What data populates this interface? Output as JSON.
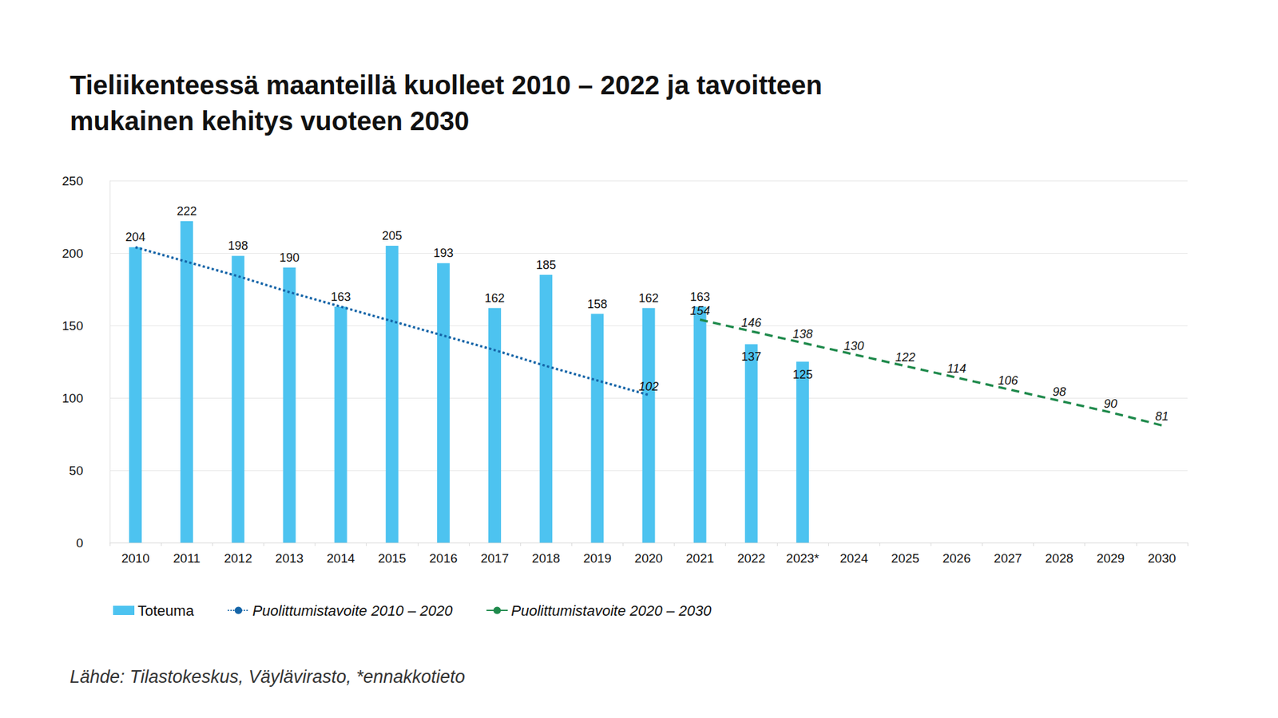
{
  "chart_data": {
    "type": "bar",
    "title": "Tieliikenteessä maanteillä kuolleet 2010 – 2022 ja tavoitteen\nmukainen kehitys vuoteen 2030",
    "categories": [
      "2010",
      "2011",
      "2012",
      "2013",
      "2014",
      "2015",
      "2016",
      "2017",
      "2018",
      "2019",
      "2020",
      "2021",
      "2022",
      "2023*",
      "2024",
      "2025",
      "2026",
      "2027",
      "2028",
      "2029",
      "2030"
    ],
    "series": [
      {
        "name": "Toteuma",
        "type": "bar",
        "color": "#4dc3f0",
        "values": [
          204,
          222,
          198,
          190,
          163,
          205,
          193,
          162,
          185,
          158,
          162,
          163,
          137,
          125,
          null,
          null,
          null,
          null,
          null,
          null,
          null
        ],
        "data_labels": true
      },
      {
        "name": "Puolittumistavoite 2010 – 2020",
        "type": "line",
        "color": "#1565a8",
        "line_style": "dotted",
        "marker": "none",
        "values": [
          204,
          194,
          184,
          173,
          163,
          153,
          143,
          133,
          122,
          112,
          102,
          null,
          null,
          null,
          null,
          null,
          null,
          null,
          null,
          null,
          null
        ],
        "value_labels": [
          null,
          null,
          null,
          null,
          null,
          null,
          null,
          null,
          null,
          null,
          "102",
          null,
          null,
          null,
          null,
          null,
          null,
          null,
          null,
          null,
          null
        ]
      },
      {
        "name": "Puolittumistavoite 2020 – 2030",
        "type": "line",
        "color": "#1f8a4c",
        "line_style": "dashed",
        "marker": "none",
        "values": [
          null,
          null,
          null,
          null,
          null,
          null,
          null,
          null,
          null,
          null,
          null,
          154,
          146,
          138,
          130,
          122,
          114,
          106,
          98,
          90,
          81
        ],
        "data_labels": true
      }
    ],
    "ylim": [
      0,
      250
    ],
    "yticks": [
      0,
      50,
      100,
      150,
      200,
      250
    ],
    "grid": true,
    "legend": "bottom",
    "annotations": [
      "Lähde: Tilastokeskus, Väylävirasto, *ennakkotieto"
    ]
  }
}
